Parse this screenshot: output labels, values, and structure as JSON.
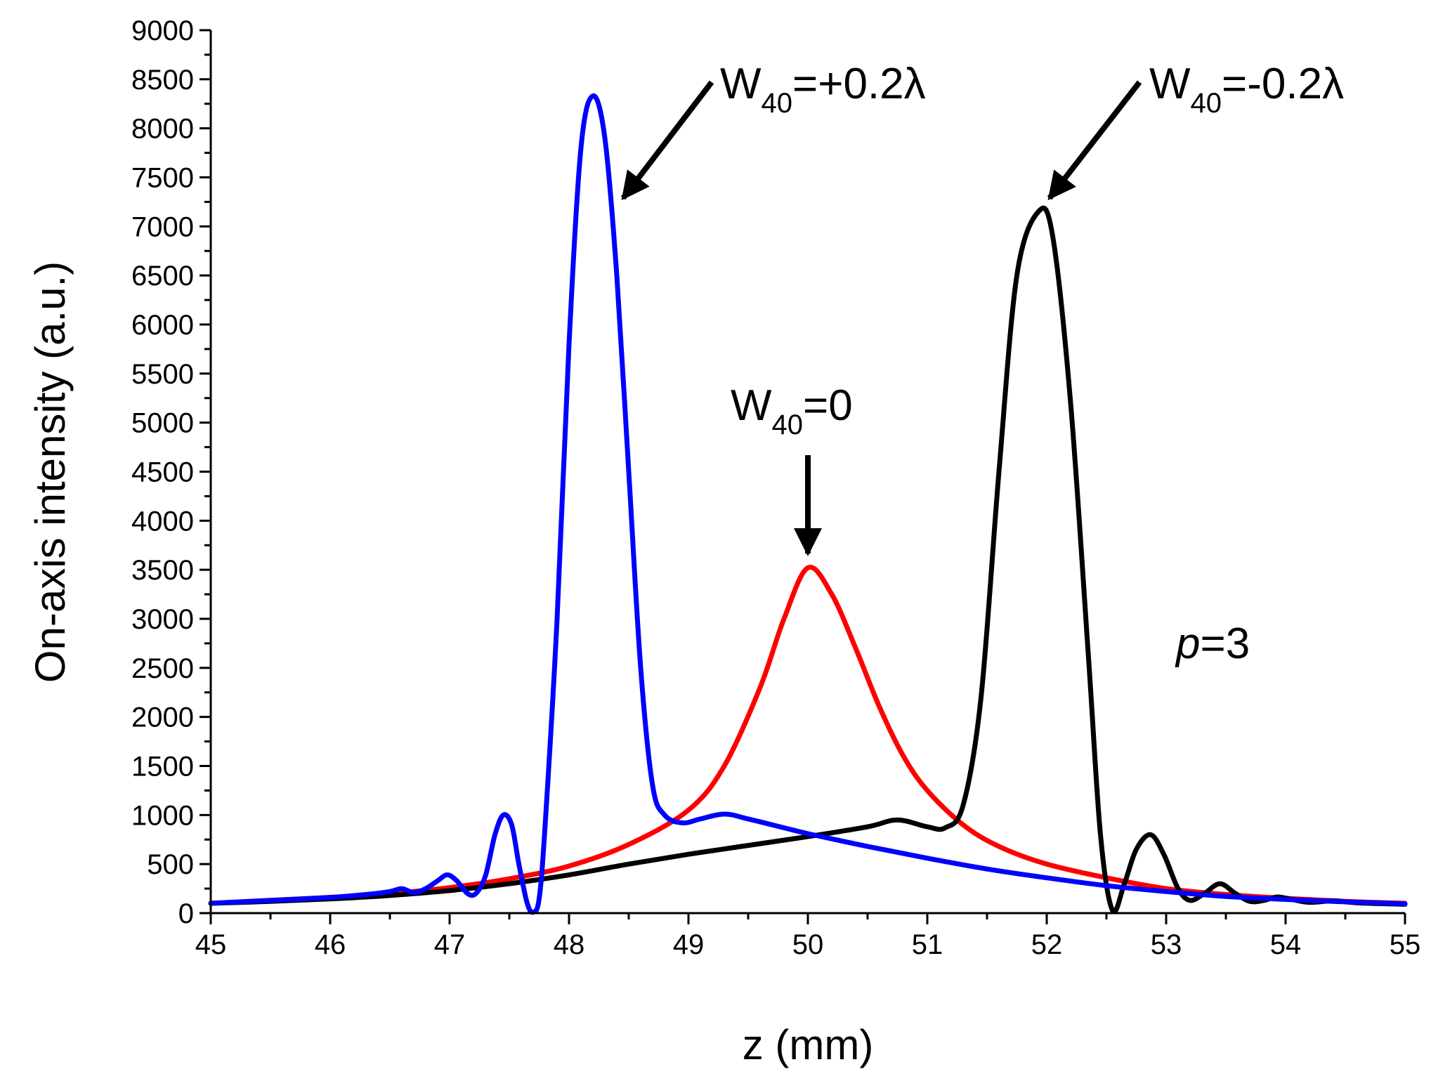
{
  "chart_data": {
    "type": "line",
    "title": "",
    "xlabel": "z (mm)",
    "ylabel": "On-axis intensity (a.u.)",
    "xlim": [
      45,
      55
    ],
    "ylim": [
      0,
      9000
    ],
    "xticks": [
      "45",
      "46",
      "47",
      "48",
      "49",
      "50",
      "51",
      "52",
      "53",
      "54",
      "55"
    ],
    "yticks": [
      "0",
      "500",
      "1000",
      "1500",
      "2000",
      "2500",
      "3000",
      "3500",
      "4000",
      "4500",
      "5000",
      "5500",
      "6000",
      "6500",
      "7000",
      "7500",
      "8000",
      "8500",
      "9000"
    ],
    "grid": false,
    "series": [
      {
        "name": "W40=0",
        "color": "#ff0000",
        "points": [
          [
            45.0,
            100
          ],
          [
            45.5,
            130
          ],
          [
            46.0,
            160
          ],
          [
            46.5,
            200
          ],
          [
            47.0,
            260
          ],
          [
            47.5,
            350
          ],
          [
            48.0,
            480
          ],
          [
            48.5,
            700
          ],
          [
            49.0,
            1050
          ],
          [
            49.3,
            1500
          ],
          [
            49.6,
            2300
          ],
          [
            49.8,
            3000
          ],
          [
            50.0,
            3520
          ],
          [
            50.2,
            3250
          ],
          [
            50.4,
            2700
          ],
          [
            50.6,
            2100
          ],
          [
            50.8,
            1600
          ],
          [
            51.0,
            1250
          ],
          [
            51.3,
            900
          ],
          [
            51.6,
            680
          ],
          [
            52.0,
            500
          ],
          [
            52.5,
            360
          ],
          [
            53.0,
            250
          ],
          [
            53.5,
            190
          ],
          [
            54.0,
            150
          ],
          [
            54.5,
            120
          ],
          [
            55.0,
            100
          ]
        ]
      },
      {
        "name": "W40=+0.2λ",
        "color": "#0000ff",
        "points": [
          [
            45.0,
            100
          ],
          [
            45.5,
            130
          ],
          [
            46.0,
            160
          ],
          [
            46.3,
            190
          ],
          [
            46.5,
            220
          ],
          [
            46.6,
            250
          ],
          [
            46.7,
            210
          ],
          [
            46.8,
            250
          ],
          [
            46.9,
            330
          ],
          [
            46.98,
            390
          ],
          [
            47.06,
            330
          ],
          [
            47.15,
            200
          ],
          [
            47.22,
            200
          ],
          [
            47.3,
            380
          ],
          [
            47.38,
            800
          ],
          [
            47.45,
            1000
          ],
          [
            47.52,
            900
          ],
          [
            47.58,
            500
          ],
          [
            47.65,
            100
          ],
          [
            47.7,
            10
          ],
          [
            47.75,
            150
          ],
          [
            47.8,
            900
          ],
          [
            47.9,
            3000
          ],
          [
            48.0,
            5800
          ],
          [
            48.1,
            7800
          ],
          [
            48.2,
            8330
          ],
          [
            48.3,
            7900
          ],
          [
            48.4,
            6500
          ],
          [
            48.5,
            4500
          ],
          [
            48.6,
            2500
          ],
          [
            48.7,
            1300
          ],
          [
            48.8,
            1000
          ],
          [
            48.95,
            920
          ],
          [
            49.1,
            960
          ],
          [
            49.3,
            1010
          ],
          [
            49.5,
            960
          ],
          [
            49.8,
            870
          ],
          [
            50.0,
            810
          ],
          [
            50.5,
            680
          ],
          [
            51.0,
            560
          ],
          [
            51.5,
            450
          ],
          [
            52.0,
            360
          ],
          [
            52.5,
            280
          ],
          [
            53.0,
            220
          ],
          [
            53.5,
            170
          ],
          [
            54.0,
            140
          ],
          [
            54.5,
            115
          ],
          [
            55.0,
            95
          ]
        ]
      },
      {
        "name": "W40=-0.2λ",
        "color": "#000000",
        "points": [
          [
            45.0,
            100
          ],
          [
            45.5,
            120
          ],
          [
            46.0,
            145
          ],
          [
            46.5,
            180
          ],
          [
            47.0,
            230
          ],
          [
            47.5,
            300
          ],
          [
            48.0,
            390
          ],
          [
            48.5,
            500
          ],
          [
            49.0,
            600
          ],
          [
            49.5,
            690
          ],
          [
            50.0,
            780
          ],
          [
            50.5,
            880
          ],
          [
            50.75,
            950
          ],
          [
            51.0,
            880
          ],
          [
            51.15,
            870
          ],
          [
            51.3,
            1100
          ],
          [
            51.45,
            2200
          ],
          [
            51.6,
            4500
          ],
          [
            51.75,
            6500
          ],
          [
            51.93,
            7150
          ],
          [
            52.05,
            6900
          ],
          [
            52.2,
            5200
          ],
          [
            52.35,
            2600
          ],
          [
            52.45,
            800
          ],
          [
            52.55,
            30
          ],
          [
            52.65,
            300
          ],
          [
            52.75,
            650
          ],
          [
            52.87,
            800
          ],
          [
            52.98,
            600
          ],
          [
            53.1,
            250
          ],
          [
            53.2,
            130
          ],
          [
            53.32,
            200
          ],
          [
            53.45,
            300
          ],
          [
            53.58,
            200
          ],
          [
            53.7,
            120
          ],
          [
            53.82,
            130
          ],
          [
            53.93,
            165
          ],
          [
            54.05,
            140
          ],
          [
            54.2,
            110
          ],
          [
            54.4,
            125
          ],
          [
            54.6,
            105
          ],
          [
            55.0,
            90
          ]
        ]
      }
    ],
    "annotations": [
      {
        "base": "W",
        "sub": "40",
        "rest": "=+0.2λ"
      },
      {
        "base": "W",
        "sub": "40",
        "rest": "=-0.2λ"
      },
      {
        "base": "W",
        "sub": "40",
        "rest": "=0"
      },
      {
        "italic": "p",
        "rest": "=3"
      }
    ]
  }
}
